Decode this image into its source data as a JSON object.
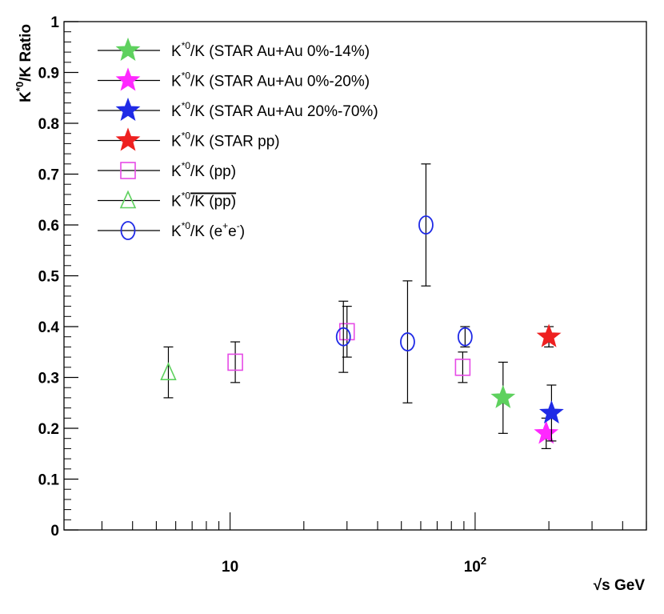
{
  "chart_data": {
    "type": "scatter",
    "xlabel": "√s GeV",
    "ylabel": "K*0/K Ratio",
    "x_scale": "log",
    "xlim": [
      2.1,
      500
    ],
    "ylim": [
      0,
      1
    ],
    "yticks": [
      0,
      0.1,
      0.2,
      0.3,
      0.4,
      0.5,
      0.6,
      0.7,
      0.8,
      0.9,
      1
    ],
    "ytick_labels": [
      "0",
      "0.1",
      "0.2",
      "0.3",
      "0.4",
      "0.5",
      "0.6",
      "0.7",
      "0.8",
      "0.9",
      "1"
    ],
    "xtick_major": [
      {
        "value": 10,
        "base": "10",
        "exp": ""
      },
      {
        "value": 100,
        "base": "10",
        "exp": "2"
      }
    ],
    "grid": false,
    "legend_position": "top-left",
    "series": [
      {
        "name": "K*0/K (STAR Au+Au 0%-14%)",
        "label_main": "K",
        "label_sup": "*0",
        "label_rest": "/K (STAR Au+Au 0%-14%)",
        "marker": "star",
        "color": "#5ed15e",
        "points": [
          {
            "x": 130,
            "y": 0.26,
            "err_lo": 0.07,
            "err_hi": 0.07
          }
        ]
      },
      {
        "name": "K*0/K (STAR Au+Au 0%-20%)",
        "label_main": "K",
        "label_sup": "*0",
        "label_rest": "/K (STAR Au+Au 0%-20%)",
        "marker": "star",
        "color": "#ff28ff",
        "points": [
          {
            "x": 195,
            "y": 0.19,
            "err_lo": 0.03,
            "err_hi": 0.03
          }
        ]
      },
      {
        "name": "K*0/K (STAR Au+Au 20%-70%)",
        "label_main": "K",
        "label_sup": "*0",
        "label_rest": "/K (STAR Au+Au 20%-70%)",
        "marker": "star",
        "color": "#1f2ae6",
        "points": [
          {
            "x": 205,
            "y": 0.23,
            "err_lo": 0.055,
            "err_hi": 0.055
          }
        ]
      },
      {
        "name": "K*0/K (STAR pp)",
        "label_main": "K",
        "label_sup": "*0",
        "label_rest": "/K (STAR pp)",
        "marker": "star",
        "color": "#ee2020",
        "points": [
          {
            "x": 200,
            "y": 0.38,
            "err_lo": 0.02,
            "err_hi": 0.02
          }
        ]
      },
      {
        "name": "K*0/K (pp)",
        "label_main": "K",
        "label_sup": "*0",
        "label_rest": "/K (pp)",
        "marker": "square",
        "color": "#e64be6",
        "points": [
          {
            "x": 10.5,
            "y": 0.33,
            "err_lo": 0.04,
            "err_hi": 0.04
          },
          {
            "x": 30,
            "y": 0.39,
            "err_lo": 0.05,
            "err_hi": 0.05
          },
          {
            "x": 89,
            "y": 0.32,
            "err_lo": 0.03,
            "err_hi": 0.03
          }
        ]
      },
      {
        "name": "K*0/K (p̄p)",
        "label_main": "K",
        "label_sup": "*0",
        "label_rest": "/K (pp)",
        "overline_rest": true,
        "marker": "triangle",
        "color": "#5ed15e",
        "points": [
          {
            "x": 5.6,
            "y": 0.31,
            "err_lo": 0.05,
            "err_hi": 0.05
          }
        ]
      },
      {
        "name": "K*0/K (e+e-)",
        "label_main": "K",
        "label_sup": "*0",
        "label_rest": "/K (e",
        "label_sup2": "+",
        "label_rest2": "e",
        "label_sup3": "-",
        "label_rest3": ")",
        "marker": "circle",
        "color": "#1f2ae6",
        "points": [
          {
            "x": 29,
            "y": 0.38,
            "err_lo": 0.07,
            "err_hi": 0.07
          },
          {
            "x": 53,
            "y": 0.37,
            "err_lo": 0.12,
            "err_hi": 0.12
          },
          {
            "x": 63,
            "y": 0.6,
            "err_lo": 0.12,
            "err_hi": 0.12
          },
          {
            "x": 91,
            "y": 0.38,
            "err_lo": 0.02,
            "err_hi": 0.02
          }
        ]
      }
    ]
  }
}
